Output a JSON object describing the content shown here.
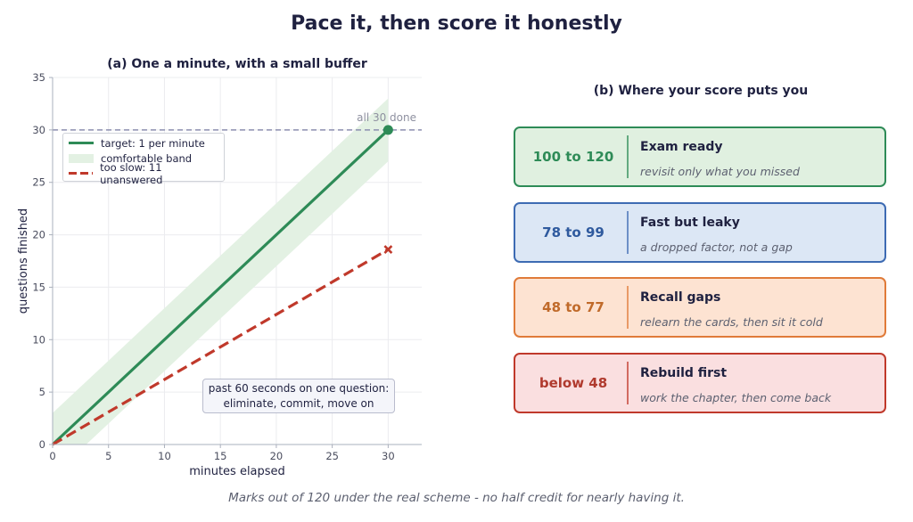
{
  "title": "Pace it, then score it honestly",
  "footnote": "Marks out of 120 under the real scheme - no half credit for nearly having it.",
  "chart_data": {
    "type": "line",
    "title": "(a) One a minute, with a small buffer",
    "xlabel": "minutes elapsed",
    "ylabel": "questions finished",
    "xlim": [
      0,
      33
    ],
    "ylim": [
      0,
      35
    ],
    "xticks": [
      0,
      5,
      10,
      15,
      20,
      25,
      30
    ],
    "yticks": [
      0,
      5,
      10,
      15,
      20,
      25,
      30,
      35
    ],
    "grid": true,
    "legend_placement": "upper-left",
    "series": [
      {
        "name": "target: 1 per minute",
        "style": "solid",
        "color": "#2e8b57",
        "x": [
          0,
          30
        ],
        "y": [
          0,
          30
        ]
      },
      {
        "name": "too slow: 11 unanswered",
        "style": "dashed",
        "color": "#c0392b",
        "x": [
          0,
          30
        ],
        "y": [
          0,
          18.6
        ]
      }
    ],
    "band": {
      "name": "comfortable band",
      "color": "#e3f1e3",
      "x": [
        0,
        30
      ],
      "lower": [
        -3,
        27
      ],
      "upper": [
        3,
        33
      ]
    },
    "reference_line": {
      "y": 30,
      "label": "all 30 done",
      "color": "#8c8fb0"
    },
    "end_markers": [
      {
        "x": 30,
        "y": 30,
        "shape": "circle",
        "color": "#2e8b57"
      },
      {
        "x": 30,
        "y": 18.6,
        "shape": "cross",
        "color": "#c0392b"
      }
    ],
    "annotation": {
      "line1": "past 60 seconds on one question:",
      "line2": "eliminate, commit, move on"
    }
  },
  "panel_b": {
    "title": "(b) Where your score puts you",
    "cards": [
      {
        "range": "100 to 120",
        "heading": "Exam ready",
        "subtext": "revisit only what you missed",
        "border": "#2e8b57",
        "fill": "#e0f0e0",
        "text_color": "#2e8b57"
      },
      {
        "range": "78 to 99",
        "heading": "Fast but leaky",
        "subtext": "a dropped factor, not a gap",
        "border": "#3d6bb3",
        "fill": "#dce7f5",
        "text_color": "#2f5a9e"
      },
      {
        "range": "48 to 77",
        "heading": "Recall gaps",
        "subtext": "relearn the cards, then sit it cold",
        "border": "#e07b39",
        "fill": "#fde3d2",
        "text_color": "#c06a2a"
      },
      {
        "range": "below 48",
        "heading": "Rebuild first",
        "subtext": "work the chapter, then come back",
        "border": "#c0392b",
        "fill": "#fadfe0",
        "text_color": "#b03a2e"
      }
    ]
  }
}
